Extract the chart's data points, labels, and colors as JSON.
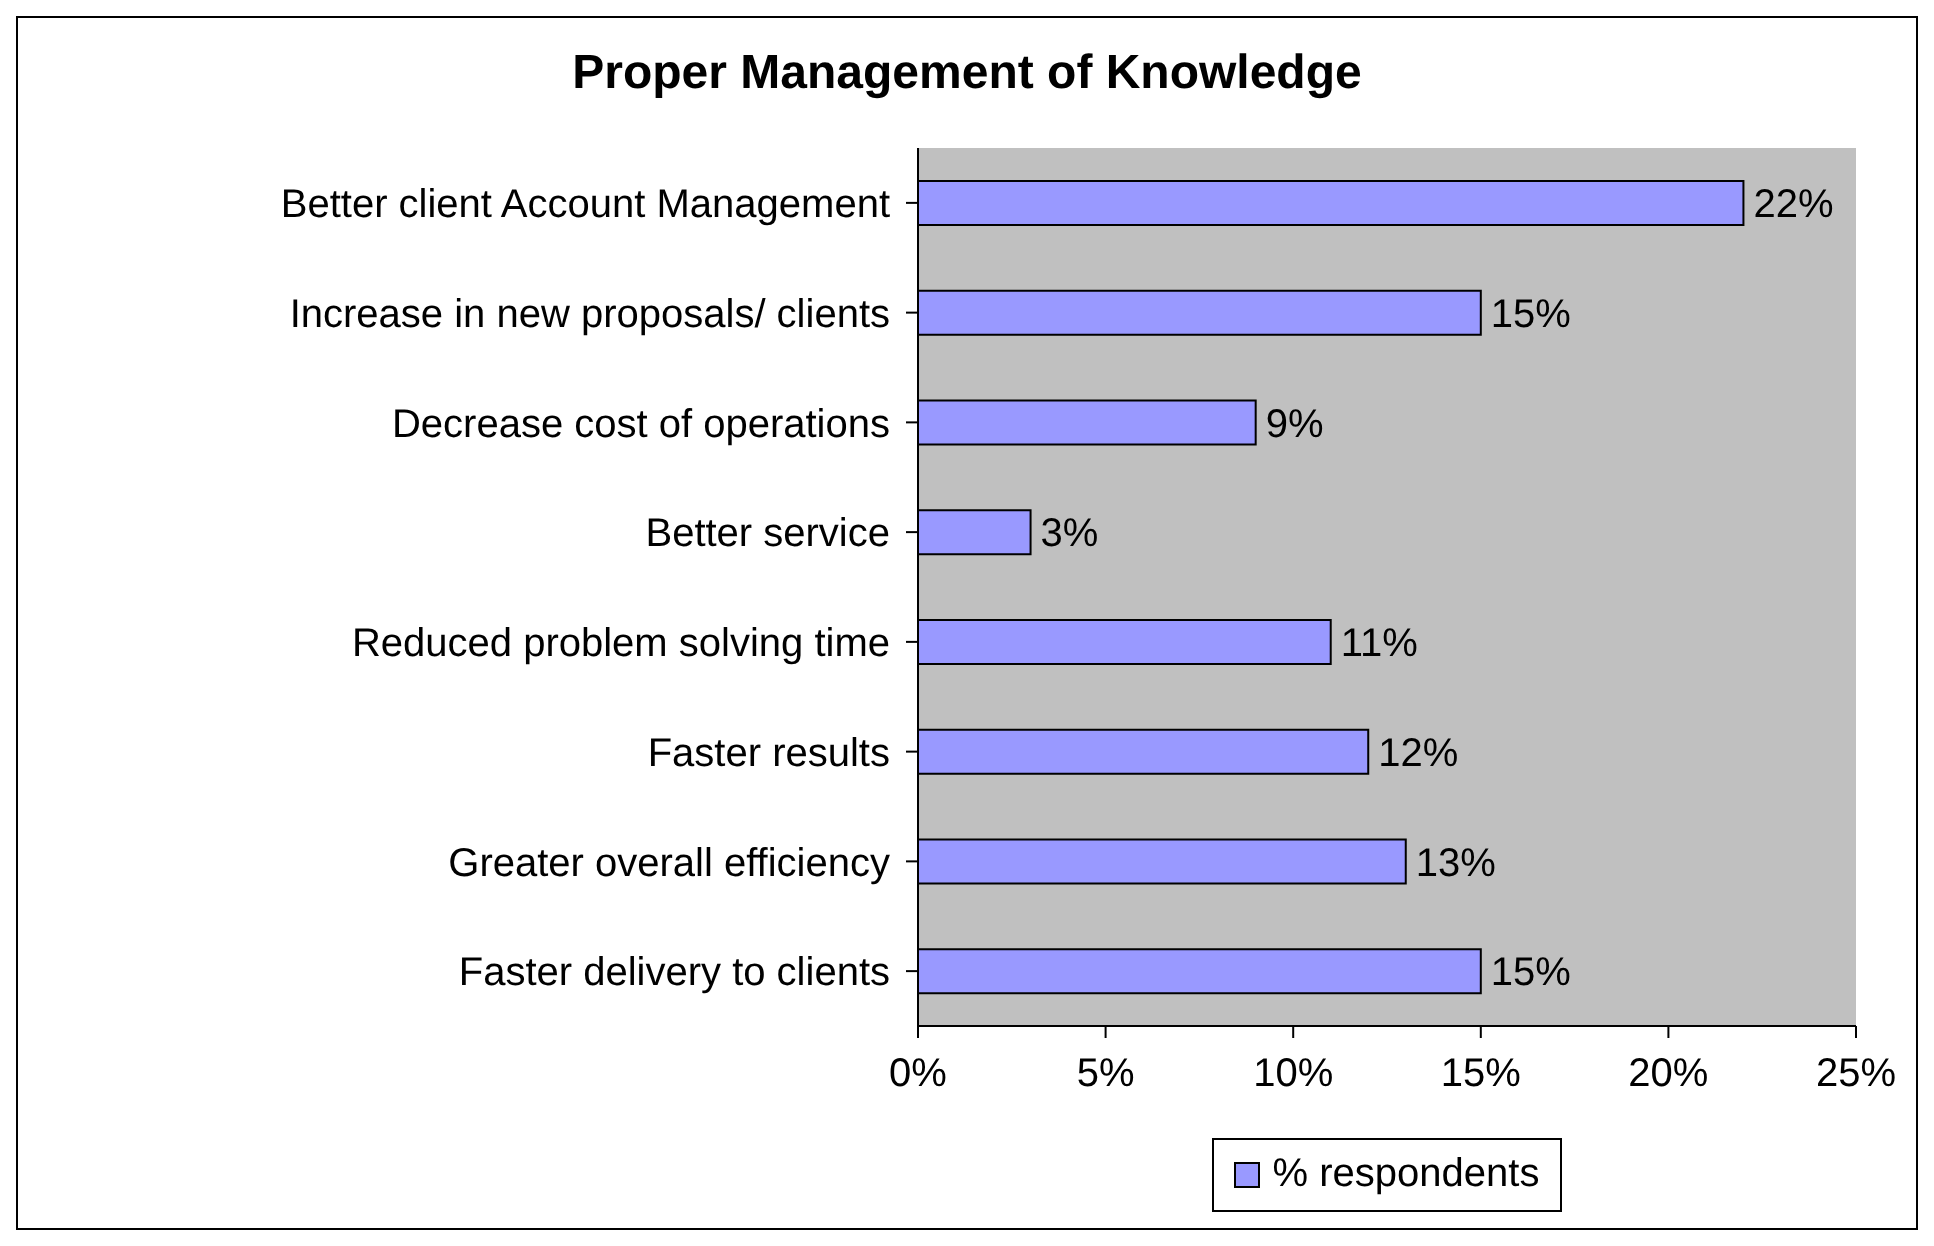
{
  "chart_data": {
    "type": "bar",
    "orientation": "horizontal",
    "title": "Proper Management of Knowledge",
    "categories": [
      "Better client Account Management",
      "Increase in new proposals/ clients",
      "Decrease cost of operations",
      "Better service",
      "Reduced problem solving time",
      "Faster results",
      "Greater overall efficiency",
      "Faster  delivery to clients"
    ],
    "series": [
      {
        "name": "% respondents",
        "color": "#9999ff",
        "values": [
          22,
          15,
          9,
          3,
          11,
          12,
          13,
          15
        ],
        "value_labels": [
          "22%",
          "15%",
          "9%",
          "3%",
          "11%",
          "12%",
          "13%",
          "15%"
        ]
      }
    ],
    "xlim": [
      0,
      25
    ],
    "xticks": [
      {
        "value": 0,
        "label": "0%"
      },
      {
        "value": 5,
        "label": "5%"
      },
      {
        "value": 10,
        "label": "10%"
      },
      {
        "value": 15,
        "label": "15%"
      },
      {
        "value": 20,
        "label": "20%"
      },
      {
        "value": 25,
        "label": "25%"
      }
    ],
    "grid": false,
    "legend": "bottom"
  }
}
